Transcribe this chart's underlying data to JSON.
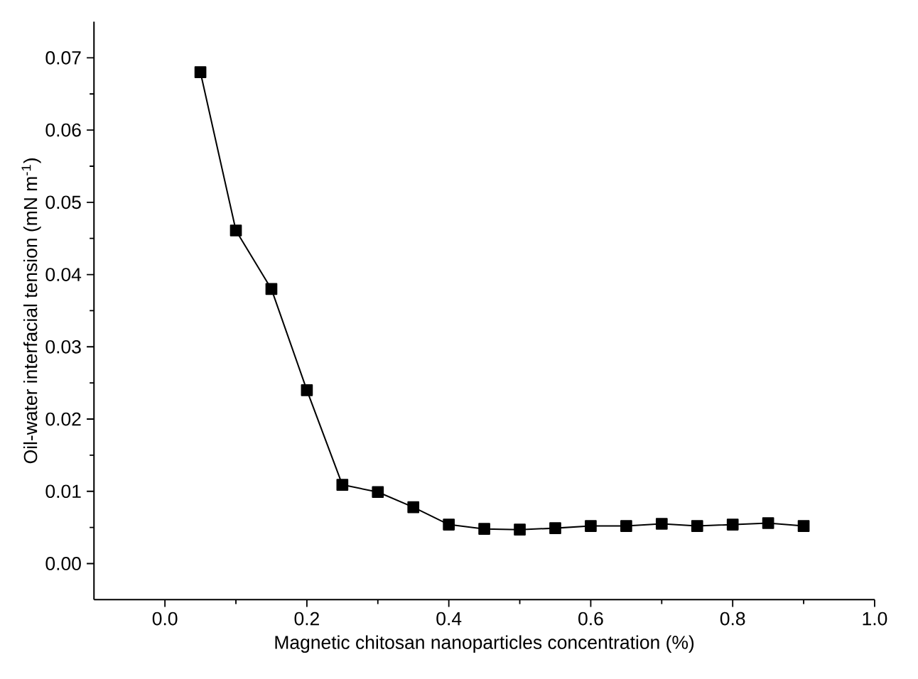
{
  "chart_data": {
    "type": "line",
    "xlabel": "Magnetic chitosan nanoparticles concentration (%)",
    "ylabel": "Oil-water interfacial tension (mN m$^{-1}$)",
    "x": [
      0.05,
      0.1,
      0.15,
      0.2,
      0.25,
      0.3,
      0.35,
      0.4,
      0.45,
      0.5,
      0.55,
      0.6,
      0.65,
      0.7,
      0.75,
      0.8,
      0.85,
      0.9
    ],
    "series": [
      {
        "color": "#000000",
        "values": [
          0.068,
          0.0461,
          0.038,
          0.024,
          0.0109,
          0.0099,
          0.0078,
          0.0054,
          0.0048,
          0.0047,
          0.0049,
          0.0052,
          0.0052,
          0.0055,
          0.0052,
          0.0054,
          0.0056,
          0.0052
        ]
      }
    ],
    "marker": "square",
    "line_style": "solid",
    "xlim": [
      -0.1,
      1.0
    ],
    "ylim": [
      -0.005,
      0.075
    ],
    "xticks": [
      {
        "value": 0.0,
        "label": "0.0"
      },
      {
        "value": 0.2,
        "label": "0.2"
      },
      {
        "value": 0.4,
        "label": "0.4"
      },
      {
        "value": 0.6,
        "label": "0.6"
      },
      {
        "value": 0.8,
        "label": "0.8"
      },
      {
        "value": 1.0,
        "label": "1.0"
      }
    ],
    "yticks": [
      {
        "value": 0.0,
        "label": "0.00"
      },
      {
        "value": 0.01,
        "label": "0.01"
      },
      {
        "value": 0.02,
        "label": "0.02"
      },
      {
        "value": 0.03,
        "label": "0.03"
      },
      {
        "value": 0.04,
        "label": "0.04"
      },
      {
        "value": 0.05,
        "label": "0.05"
      },
      {
        "value": 0.06,
        "label": "0.06"
      },
      {
        "value": 0.07,
        "label": "0.07"
      }
    ]
  }
}
